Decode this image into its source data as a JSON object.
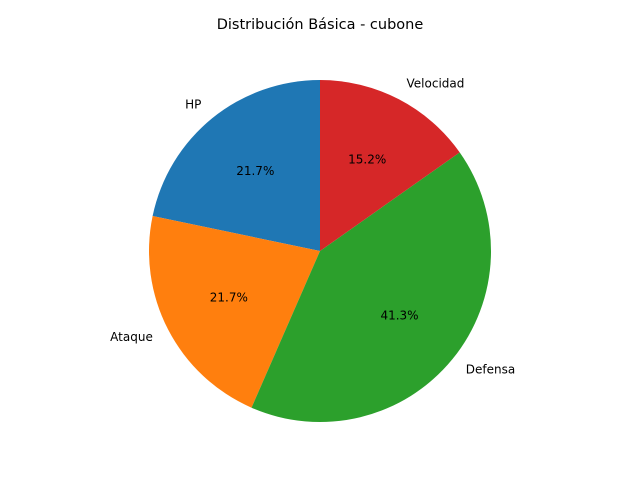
{
  "chart_data": {
    "type": "pie",
    "title": "Distribución Básica - cubone",
    "start_angle_deg": 90,
    "direction": "counterclockwise",
    "slices": [
      {
        "label": "HP",
        "value": 21.7,
        "pct_label": "21.7%",
        "color": "#1f77b4"
      },
      {
        "label": "Ataque",
        "value": 21.7,
        "pct_label": "21.7%",
        "color": "#ff7f0e"
      },
      {
        "label": "Defensa",
        "value": 41.3,
        "pct_label": "41.3%",
        "color": "#2ca02c"
      },
      {
        "label": "Velocidad",
        "value": 15.2,
        "pct_label": "15.2%",
        "color": "#d62728"
      }
    ]
  }
}
